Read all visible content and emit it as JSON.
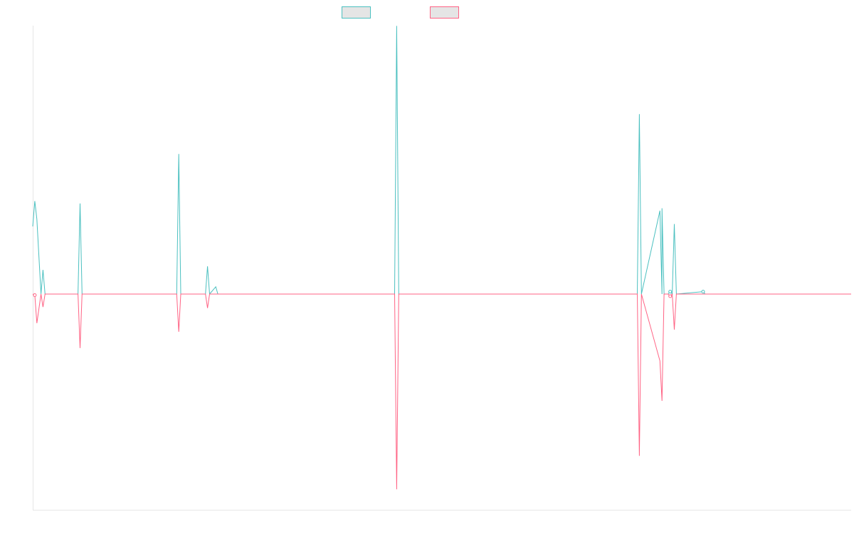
{
  "chart_data": {
    "type": "line",
    "title": "",
    "xlabel": "",
    "ylabel": "",
    "grid": false,
    "legend_position": "top-center",
    "x_range": [
      0,
      199
    ],
    "ylim": [
      -1,
      1
    ],
    "series": [
      {
        "name": "",
        "color": "#4bc0c0",
        "fill": "#e5e5e5",
        "points": [
          [
            0,
            0.28
          ],
          [
            0.5,
            0.385
          ],
          [
            1,
            0.31
          ],
          [
            2,
            0.0
          ],
          [
            2.5,
            0.1
          ],
          [
            3,
            0.0
          ],
          [
            11,
            0.0
          ],
          [
            11.5,
            0.375
          ],
          [
            12,
            0.0
          ],
          [
            33,
            0.0
          ],
          [
            35,
            0.0
          ],
          [
            35.5,
            0.58
          ],
          [
            36,
            0.0
          ],
          [
            42,
            0.0
          ],
          [
            42.5,
            0.115
          ],
          [
            43,
            0.0
          ],
          [
            44.5,
            0.03
          ],
          [
            45,
            0.0
          ],
          [
            88,
            0.0
          ],
          [
            88.5,
            1.11
          ],
          [
            89,
            0.0
          ],
          [
            106,
            0.0
          ],
          [
            153,
            0.0
          ],
          [
            147,
            0.0
          ],
          [
            147.5,
            0.745
          ],
          [
            148,
            0.0
          ],
          [
            152.5,
            0.345
          ],
          [
            153,
            0.355
          ],
          [
            153.5,
            0.0
          ],
          [
            154.5,
            0.0
          ],
          [
            155,
            0.01
          ],
          [
            155.5,
            0.0
          ],
          [
            156,
            0.29
          ],
          [
            156.5,
            0.0
          ],
          [
            163,
            0.01
          ],
          [
            163.5,
            0.0
          ],
          [
            199,
            0.0
          ]
        ]
      },
      {
        "name": "",
        "color": "#ff6384",
        "fill": "#e5e5e5",
        "points": [
          [
            0,
            0.0
          ],
          [
            0.5,
            -0.005
          ],
          [
            1,
            -0.135
          ],
          [
            2,
            0.0
          ],
          [
            2.5,
            -0.06
          ],
          [
            3,
            0.0
          ],
          [
            11,
            0.0
          ],
          [
            11.5,
            -0.25
          ],
          [
            12,
            0.0
          ],
          [
            35,
            0.0
          ],
          [
            35.5,
            -0.175
          ],
          [
            36,
            0.0
          ],
          [
            42,
            0.0
          ],
          [
            42.5,
            -0.065
          ],
          [
            43,
            0.0
          ],
          [
            88,
            0.0
          ],
          [
            88.5,
            -0.905
          ],
          [
            89,
            0.0
          ],
          [
            147,
            0.0
          ],
          [
            147.5,
            -0.75
          ],
          [
            148,
            0.0
          ],
          [
            152.5,
            -0.31
          ],
          [
            153,
            -0.495
          ],
          [
            153.5,
            0.0
          ],
          [
            154.5,
            0.0
          ],
          [
            155,
            -0.01
          ],
          [
            155.5,
            0.0
          ],
          [
            156,
            -0.165
          ],
          [
            156.5,
            0.0
          ],
          [
            199,
            0.0
          ]
        ]
      }
    ]
  }
}
